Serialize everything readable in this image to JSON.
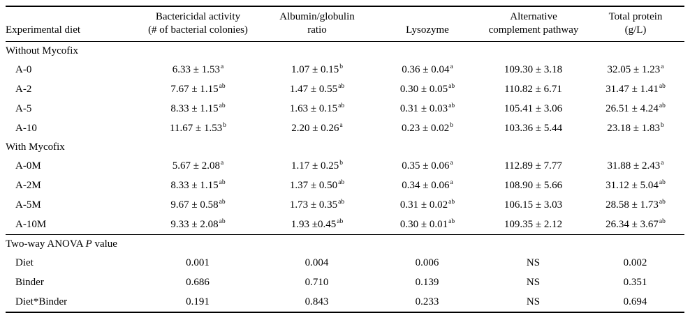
{
  "table": {
    "columns": [
      {
        "line1": "",
        "line2": "Experimental diet"
      },
      {
        "line1": "Bactericidal activity",
        "line2": "(# of bacterial colonies)"
      },
      {
        "line1": "Albumin/globulin",
        "line2": "ratio"
      },
      {
        "line1": "",
        "line2": "Lysozyme"
      },
      {
        "line1": "Alternative",
        "line2": "complement pathway"
      },
      {
        "line1": "Total protein",
        "line2": "(g/L)"
      }
    ],
    "sections": [
      {
        "title_prefix": "Without Mycofix",
        "title_italic": "",
        "title_suffix": "",
        "rows": [
          {
            "label": "A-0",
            "cells": [
              {
                "v": "6.33 ± 1.53",
                "s": "a"
              },
              {
                "v": "1.07 ± 0.15",
                "s": "b"
              },
              {
                "v": "0.36 ± 0.04",
                "s": "a"
              },
              {
                "v": "109.30 ± 3.18",
                "s": ""
              },
              {
                "v": "32.05 ± 1.23",
                "s": "a"
              }
            ]
          },
          {
            "label": "A-2",
            "cells": [
              {
                "v": "7.67 ± 1.15",
                "s": "ab"
              },
              {
                "v": "1.47 ± 0.55",
                "s": "ab"
              },
              {
                "v": "0.30 ± 0.05",
                "s": "ab"
              },
              {
                "v": "110.82 ± 6.71",
                "s": ""
              },
              {
                "v": "31.47 ± 1.41",
                "s": "ab"
              }
            ]
          },
          {
            "label": "A-5",
            "cells": [
              {
                "v": "8.33 ± 1.15",
                "s": "ab"
              },
              {
                "v": "1.63 ± 0.15",
                "s": "ab"
              },
              {
                "v": "0.31 ± 0.03",
                "s": "ab"
              },
              {
                "v": "105.41 ± 3.06",
                "s": ""
              },
              {
                "v": "26.51 ± 4.24",
                "s": "ab"
              }
            ]
          },
          {
            "label": "A-10",
            "cells": [
              {
                "v": "11.67 ± 1.53",
                "s": "b"
              },
              {
                "v": "2.20 ± 0.26",
                "s": "a"
              },
              {
                "v": "0.23 ± 0.02",
                "s": "b"
              },
              {
                "v": "103.36 ± 5.44",
                "s": ""
              },
              {
                "v": "23.18 ± 1.83",
                "s": "b"
              }
            ]
          }
        ]
      },
      {
        "title_prefix": "With Mycofix",
        "title_italic": "",
        "title_suffix": "",
        "rows": [
          {
            "label": "A-0M",
            "cells": [
              {
                "v": "5.67 ± 2.08",
                "s": "a"
              },
              {
                "v": "1.17 ± 0.25",
                "s": "b"
              },
              {
                "v": "0.35 ± 0.06",
                "s": "a"
              },
              {
                "v": "112.89 ± 7.77",
                "s": ""
              },
              {
                "v": "31.88 ± 2.43",
                "s": "a"
              }
            ]
          },
          {
            "label": "A-2M",
            "cells": [
              {
                "v": "8.33 ± 1.15",
                "s": "ab"
              },
              {
                "v": "1.37 ± 0.50",
                "s": "ab"
              },
              {
                "v": "0.34 ± 0.06",
                "s": "a"
              },
              {
                "v": "108.90 ± 5.66",
                "s": ""
              },
              {
                "v": "31.12 ± 5.04",
                "s": "ab"
              }
            ]
          },
          {
            "label": "A-5M",
            "cells": [
              {
                "v": "9.67 ± 0.58",
                "s": "ab"
              },
              {
                "v": "1.73 ± 0.35",
                "s": "ab"
              },
              {
                "v": "0.31 ± 0.02",
                "s": "ab"
              },
              {
                "v": "106.15 ± 3.03",
                "s": ""
              },
              {
                "v": "28.58 ± 1.73",
                "s": "ab"
              }
            ]
          },
          {
            "label": "A-10M",
            "cells": [
              {
                "v": "9.33 ± 2.08",
                "s": "ab"
              },
              {
                "v": "1.93 ±0.45",
                "s": "ab"
              },
              {
                "v": "0.30 ± 0.01",
                "s": "ab"
              },
              {
                "v": "109.35 ± 2.12",
                "s": ""
              },
              {
                "v": "26.34 ± 3.67",
                "s": "ab"
              }
            ]
          }
        ]
      },
      {
        "title_prefix": "Two-way ANOVA ",
        "title_italic": "P",
        "title_suffix": " value",
        "rows": [
          {
            "label": "Diet",
            "cells": [
              {
                "v": "0.001",
                "s": ""
              },
              {
                "v": "0.004",
                "s": ""
              },
              {
                "v": "0.006",
                "s": ""
              },
              {
                "v": "NS",
                "s": ""
              },
              {
                "v": "0.002",
                "s": ""
              }
            ]
          },
          {
            "label": "Binder",
            "cells": [
              {
                "v": "0.686",
                "s": ""
              },
              {
                "v": "0.710",
                "s": ""
              },
              {
                "v": "0.139",
                "s": ""
              },
              {
                "v": "NS",
                "s": ""
              },
              {
                "v": "0.351",
                "s": ""
              }
            ]
          },
          {
            "label": "Diet*Binder",
            "cells": [
              {
                "v": "0.191",
                "s": ""
              },
              {
                "v": "0.843",
                "s": ""
              },
              {
                "v": "0.233",
                "s": ""
              },
              {
                "v": "NS",
                "s": ""
              },
              {
                "v": "0.694",
                "s": ""
              }
            ]
          }
        ]
      }
    ]
  }
}
